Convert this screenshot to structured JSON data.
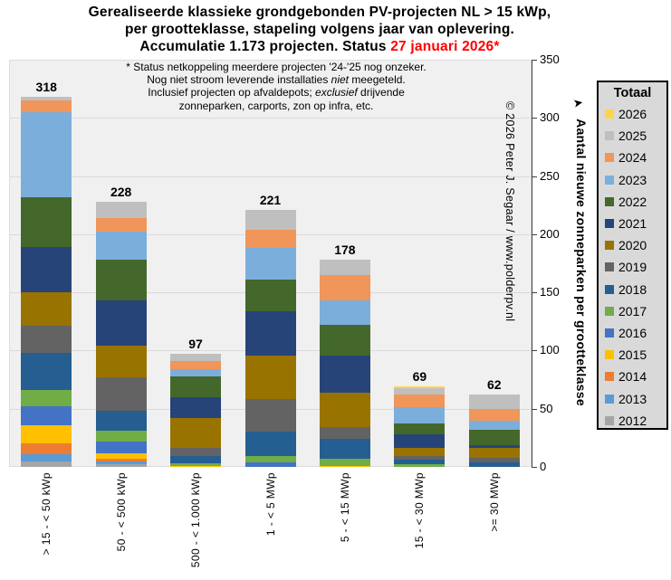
{
  "title": {
    "lines": [
      "Gerealiseerde klassieke grondgebonden PV-projecten NL > 15 kWp,",
      "per grootteklasse, stapeling volgens jaar van oplevering."
    ],
    "line3_prefix": "Accumulatie 1.173 projecten. Status ",
    "line3_date": "27 januari 2026*",
    "date_color": "#FF0000"
  },
  "annotation": {
    "runs": [
      [
        {
          "t": "* Status netkoppeling meerdere projecten '24-'25 nog onzeker.",
          "i": 0
        }
      ],
      [
        {
          "t": "Nog niet stroom leverende installaties ",
          "i": 0
        },
        {
          "t": "niet",
          "i": 1
        },
        {
          "t": " meegeteld.",
          "i": 0
        }
      ],
      [
        {
          "t": "Inclusief projecten op afvaldepots; ",
          "i": 0
        },
        {
          "t": "exclusief",
          "i": 1
        },
        {
          "t": " drijvende",
          "i": 0
        }
      ],
      [
        {
          "t": "zonneparken, carports, zon op infra, etc.",
          "i": 0
        }
      ]
    ]
  },
  "copyright": "© 2026  Peter J. Segaar / www.polderpv.nl",
  "y_axis": {
    "title": "Aantal nieuwe zonneparken per grootteklasse",
    "min": 0,
    "max": 350,
    "tick_step": 50,
    "ticks": [
      "0",
      "50",
      "100",
      "150",
      "200",
      "250",
      "300",
      "350"
    ]
  },
  "legend": {
    "title": "Totaal",
    "position": "right",
    "order": "newest-first"
  },
  "colors": {
    "plot_bg": "#F0F0F0",
    "grid": "#DADADA",
    "axis": "#404040",
    "legend_bg": "#D9D9D9",
    "title_date": "#FF0000"
  },
  "chart_data": {
    "type": "bar",
    "stacked": true,
    "grid": true,
    "legend_position": "right",
    "title": "Gerealiseerde klassieke grondgebonden PV-projecten NL > 15 kWp, per grootteklasse, stapeling volgens jaar van oplevering. Accumulatie 1.173 projecten. Status 27 januari 2026*",
    "ylabel": "Aantal nieuwe zonneparken per grootteklasse",
    "ylim": [
      0,
      350
    ],
    "categories": [
      "> 15 - < 50 kWp",
      "50 - < 500 kWp",
      "500 - < 1.000 kWp",
      "1 - < 5 MWp",
      "5 - < 15 MWp",
      "15 - < 30 MWp",
      ">= 30 MWp"
    ],
    "totals": [
      318,
      228,
      97,
      221,
      178,
      69,
      62
    ],
    "grand_total": 1173,
    "series": [
      {
        "name": "2012",
        "color": "#A5A5A5",
        "values": [
          5,
          2,
          0,
          0,
          0,
          0,
          0
        ]
      },
      {
        "name": "2013",
        "color": "#5B9BD5",
        "values": [
          6,
          3,
          0,
          0,
          0,
          0,
          0
        ]
      },
      {
        "name": "2014",
        "color": "#ED7D31",
        "values": [
          9,
          2,
          0,
          0,
          0,
          0,
          0
        ]
      },
      {
        "name": "2015",
        "color": "#FFC000",
        "values": [
          16,
          5,
          1,
          0,
          1,
          0,
          0
        ]
      },
      {
        "name": "2016",
        "color": "#4472C4",
        "values": [
          16,
          10,
          0,
          4,
          0,
          0,
          0
        ]
      },
      {
        "name": "2017",
        "color": "#70AD47",
        "values": [
          14,
          9,
          2,
          5,
          6,
          2,
          0
        ]
      },
      {
        "name": "2018",
        "color": "#255E91",
        "values": [
          32,
          17,
          6,
          21,
          17,
          4,
          4
        ]
      },
      {
        "name": "2019",
        "color": "#636363",
        "values": [
          23,
          29,
          7,
          28,
          10,
          3,
          4
        ]
      },
      {
        "name": "2020",
        "color": "#997300",
        "values": [
          29,
          27,
          26,
          38,
          30,
          7,
          8
        ]
      },
      {
        "name": "2021",
        "color": "#264478",
        "values": [
          39,
          39,
          18,
          38,
          32,
          12,
          3
        ]
      },
      {
        "name": "2022",
        "color": "#44682B",
        "values": [
          43,
          35,
          18,
          27,
          26,
          9,
          13
        ]
      },
      {
        "name": "2023",
        "color": "#7CAEDC",
        "values": [
          73,
          24,
          6,
          27,
          21,
          14,
          8
        ]
      },
      {
        "name": "2024",
        "color": "#F0965A",
        "values": [
          10,
          12,
          7,
          16,
          22,
          11,
          10
        ]
      },
      {
        "name": "2025",
        "color": "#BFBFBF",
        "values": [
          3,
          14,
          6,
          17,
          13,
          6,
          12
        ]
      },
      {
        "name": "2026",
        "color": "#FFD34D",
        "values": [
          0,
          0,
          0,
          0,
          0,
          1,
          0
        ]
      }
    ]
  }
}
